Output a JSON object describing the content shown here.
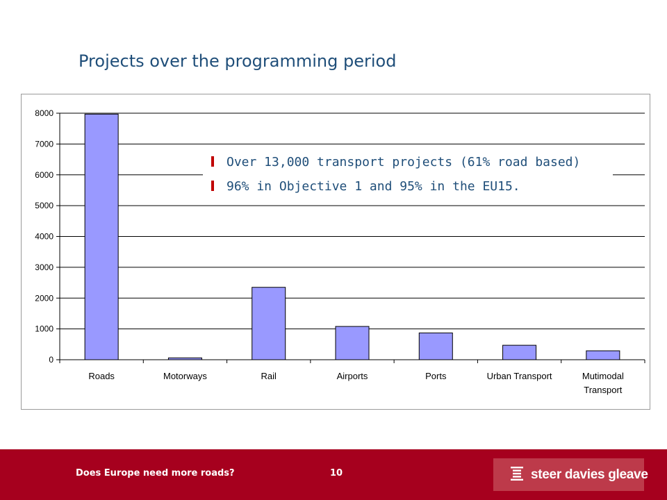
{
  "slide": {
    "title": "Projects over the programming period",
    "bullets": [
      "Over 13,000 transport projects (61% road based)",
      "96% in Objective 1 and 95% in the EU15."
    ]
  },
  "footer": {
    "text": "Does Europe need more roads?",
    "page_number": "10",
    "logo_text": "steer davies gleave"
  },
  "colors": {
    "bar_fill": "#9999ff",
    "footer_background": "#a6001e",
    "bullet_marker": "#c00000",
    "title_text": "#1f4e79"
  },
  "chart_data": {
    "type": "bar",
    "categories": [
      "Roads",
      "Motorways",
      "Rail",
      "Airports",
      "Ports",
      "Urban Transport",
      "Mutimodal Transport"
    ],
    "category_label_lines": [
      [
        "Roads"
      ],
      [
        "Motorways"
      ],
      [
        "Rail"
      ],
      [
        "Airports"
      ],
      [
        "Ports"
      ],
      [
        "Urban Transport"
      ],
      [
        "Mutimodal",
        "Transport"
      ]
    ],
    "values": [
      7970,
      60,
      2350,
      1080,
      870,
      470,
      290
    ],
    "yticks": [
      0,
      1000,
      2000,
      3000,
      4000,
      5000,
      6000,
      7000,
      8000
    ],
    "ylim": [
      0,
      8000
    ],
    "grid": true,
    "legend": "none",
    "title": "",
    "xlabel": "",
    "ylabel": ""
  }
}
